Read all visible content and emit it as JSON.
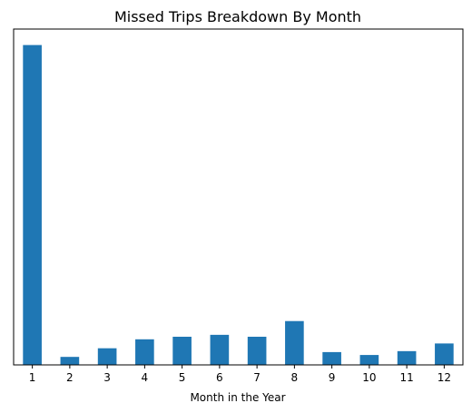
{
  "chart_data": {
    "type": "bar",
    "title": "Missed Trips Breakdown By Month",
    "xlabel": "Month in the Year",
    "ylabel": "",
    "categories": [
      "1",
      "2",
      "3",
      "4",
      "5",
      "6",
      "7",
      "8",
      "9",
      "10",
      "11",
      "12"
    ],
    "values": [
      100,
      2.5,
      5.2,
      8.0,
      8.8,
      9.4,
      8.8,
      13.7,
      4.0,
      3.1,
      4.3,
      6.7
    ],
    "ylim": [
      0,
      105
    ],
    "y_ticks_shown": false,
    "grid": false,
    "legend": "none",
    "bar_color": "#1f77b4"
  }
}
